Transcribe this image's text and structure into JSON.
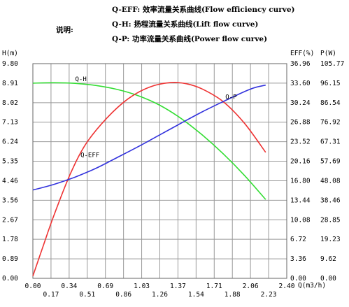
{
  "legend": {
    "heading": "说明:",
    "items": [
      "Q-EFF: 效率流量关系曲线(Flow efficiency curve)",
      "Q-H: 扬程流量关系曲线(Lift flow curve)",
      "Q-P: 功率流量关系曲线(Power flow curve)"
    ]
  },
  "chart_data": {
    "type": "line",
    "xlabel": "Q(m3/h)",
    "x_ticks_top": [
      "0.00",
      "0.34",
      "0.69",
      "1.03",
      "1.37",
      "1.71",
      "2.06",
      "2.40"
    ],
    "x_ticks_bottom": [
      "0.17",
      "0.51",
      "0.86",
      "1.26",
      "1.54",
      "1.88",
      "2.23"
    ],
    "xlim": [
      0,
      2.4
    ],
    "y_left": {
      "label": "H(m)",
      "ticks": [
        "9.80",
        "8.91",
        "8.02",
        "7.13",
        "6.24",
        "5.35",
        "4.46",
        "3.56",
        "2.67",
        "1.78",
        "0.89",
        "0.00"
      ],
      "ylim": [
        0,
        9.8
      ]
    },
    "y_eff": {
      "label": "EFF(%)",
      "ticks": [
        "36.96",
        "33.60",
        "30.24",
        "26.88",
        "23.52",
        "20.16",
        "16.80",
        "13.44",
        "10.08",
        "6.72",
        "3.36",
        "0.00"
      ],
      "ylim": [
        0,
        36.96
      ]
    },
    "y_power": {
      "label": "P(W)",
      "ticks": [
        "105.77",
        "96.15",
        "86.54",
        "76.92",
        "67.31",
        "57.69",
        "48.08",
        "38.46",
        "28.85",
        "19.23",
        "9.62",
        "0.00"
      ],
      "ylim": [
        0,
        105.77
      ]
    },
    "series": [
      {
        "name": "Q-H",
        "axis": "y_left",
        "color": "#33dd33",
        "x": [
          0.0,
          0.2,
          0.4,
          0.6,
          0.8,
          1.0,
          1.2,
          1.4,
          1.6,
          1.8,
          2.0,
          2.2
        ],
        "values": [
          8.91,
          8.93,
          8.9,
          8.8,
          8.62,
          8.33,
          7.9,
          7.3,
          6.55,
          5.68,
          4.7,
          3.6
        ]
      },
      {
        "name": "Q-EFF",
        "axis": "y_eff",
        "color": "#ee3333",
        "x": [
          0.0,
          0.1,
          0.2,
          0.35,
          0.5,
          0.7,
          0.9,
          1.1,
          1.3,
          1.45,
          1.6,
          1.8,
          2.0,
          2.2
        ],
        "values": [
          0.4,
          5.7,
          10.9,
          17.8,
          23.1,
          27.6,
          30.9,
          32.9,
          33.7,
          33.5,
          32.6,
          30.4,
          26.7,
          21.7
        ]
      },
      {
        "name": "Q-P",
        "axis": "y_power",
        "color": "#3333dd",
        "x": [
          0.0,
          0.2,
          0.4,
          0.6,
          0.8,
          1.0,
          1.2,
          1.4,
          1.6,
          1.8,
          2.0,
          2.1,
          2.2
        ],
        "values": [
          43.5,
          46.3,
          49.9,
          54.3,
          59.6,
          65.0,
          70.7,
          76.4,
          82.0,
          87.1,
          92.0,
          94.0,
          95.2
        ]
      }
    ],
    "labels": {
      "qh": "Q-H",
      "qp": "Q-P",
      "qeff": "Q-EFF"
    },
    "grid": true
  }
}
